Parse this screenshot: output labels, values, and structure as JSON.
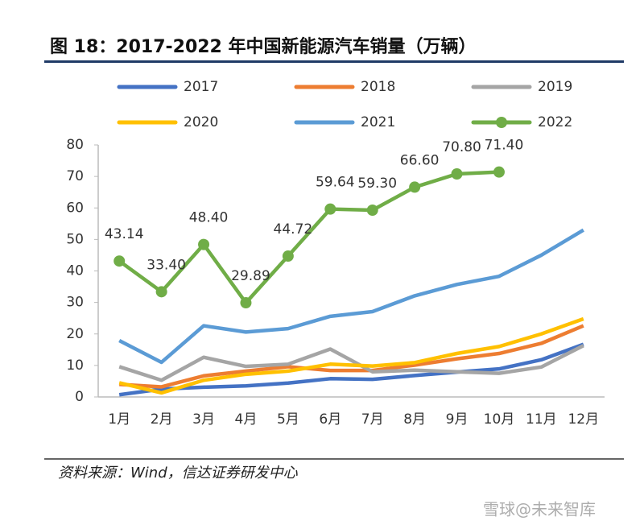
{
  "chart_data": {
    "type": "line",
    "title": "图 18：2017-2022 年中国新能源汽车销量（万辆）",
    "source": "资料来源：Wind，信达证券研发中心",
    "watermark": "雪球@未来智库",
    "categories": [
      "1月",
      "2月",
      "3月",
      "4月",
      "5月",
      "6月",
      "7月",
      "8月",
      "9月",
      "10月",
      "11月",
      "12月"
    ],
    "ylim": [
      0,
      80
    ],
    "yticks": [
      0,
      10,
      20,
      30,
      40,
      50,
      60,
      70,
      80
    ],
    "grid": false,
    "series": [
      {
        "name": "2017",
        "color": "#4472c4",
        "values": [
          0.7,
          2.5,
          3.1,
          3.5,
          4.4,
          5.8,
          5.6,
          6.8,
          7.9,
          8.9,
          11.8,
          16.7
        ]
      },
      {
        "name": "2018",
        "color": "#ed7d31",
        "values": [
          4.0,
          3.2,
          6.7,
          8.2,
          9.6,
          8.4,
          8.4,
          10.1,
          12.1,
          13.8,
          17.0,
          22.6
        ]
      },
      {
        "name": "2019",
        "color": "#a5a5a5",
        "values": [
          9.6,
          5.3,
          12.6,
          9.7,
          10.4,
          15.2,
          8.0,
          8.5,
          8.0,
          7.5,
          9.5,
          16.3
        ]
      },
      {
        "name": "2020",
        "color": "#ffc000",
        "values": [
          4.5,
          1.3,
          5.3,
          7.2,
          8.2,
          10.4,
          9.8,
          10.9,
          13.8,
          16.0,
          20.0,
          24.8
        ]
      },
      {
        "name": "2021",
        "color": "#5b9bd5",
        "values": [
          17.9,
          11.0,
          22.6,
          20.6,
          21.7,
          25.6,
          27.1,
          32.1,
          35.7,
          38.3,
          45.0,
          53.0
        ]
      },
      {
        "name": "2022",
        "color": "#70ad47",
        "marker": true,
        "values": [
          43.14,
          33.4,
          48.4,
          29.89,
          44.72,
          59.64,
          59.3,
          66.6,
          70.8,
          71.4,
          null,
          null
        ],
        "value_labels": [
          "43.14",
          "33.40",
          "48.40",
          "29.89",
          "44.72",
          "59.64",
          "59.30",
          "66.60",
          "70.80",
          "71.40",
          null,
          null
        ]
      }
    ]
  }
}
